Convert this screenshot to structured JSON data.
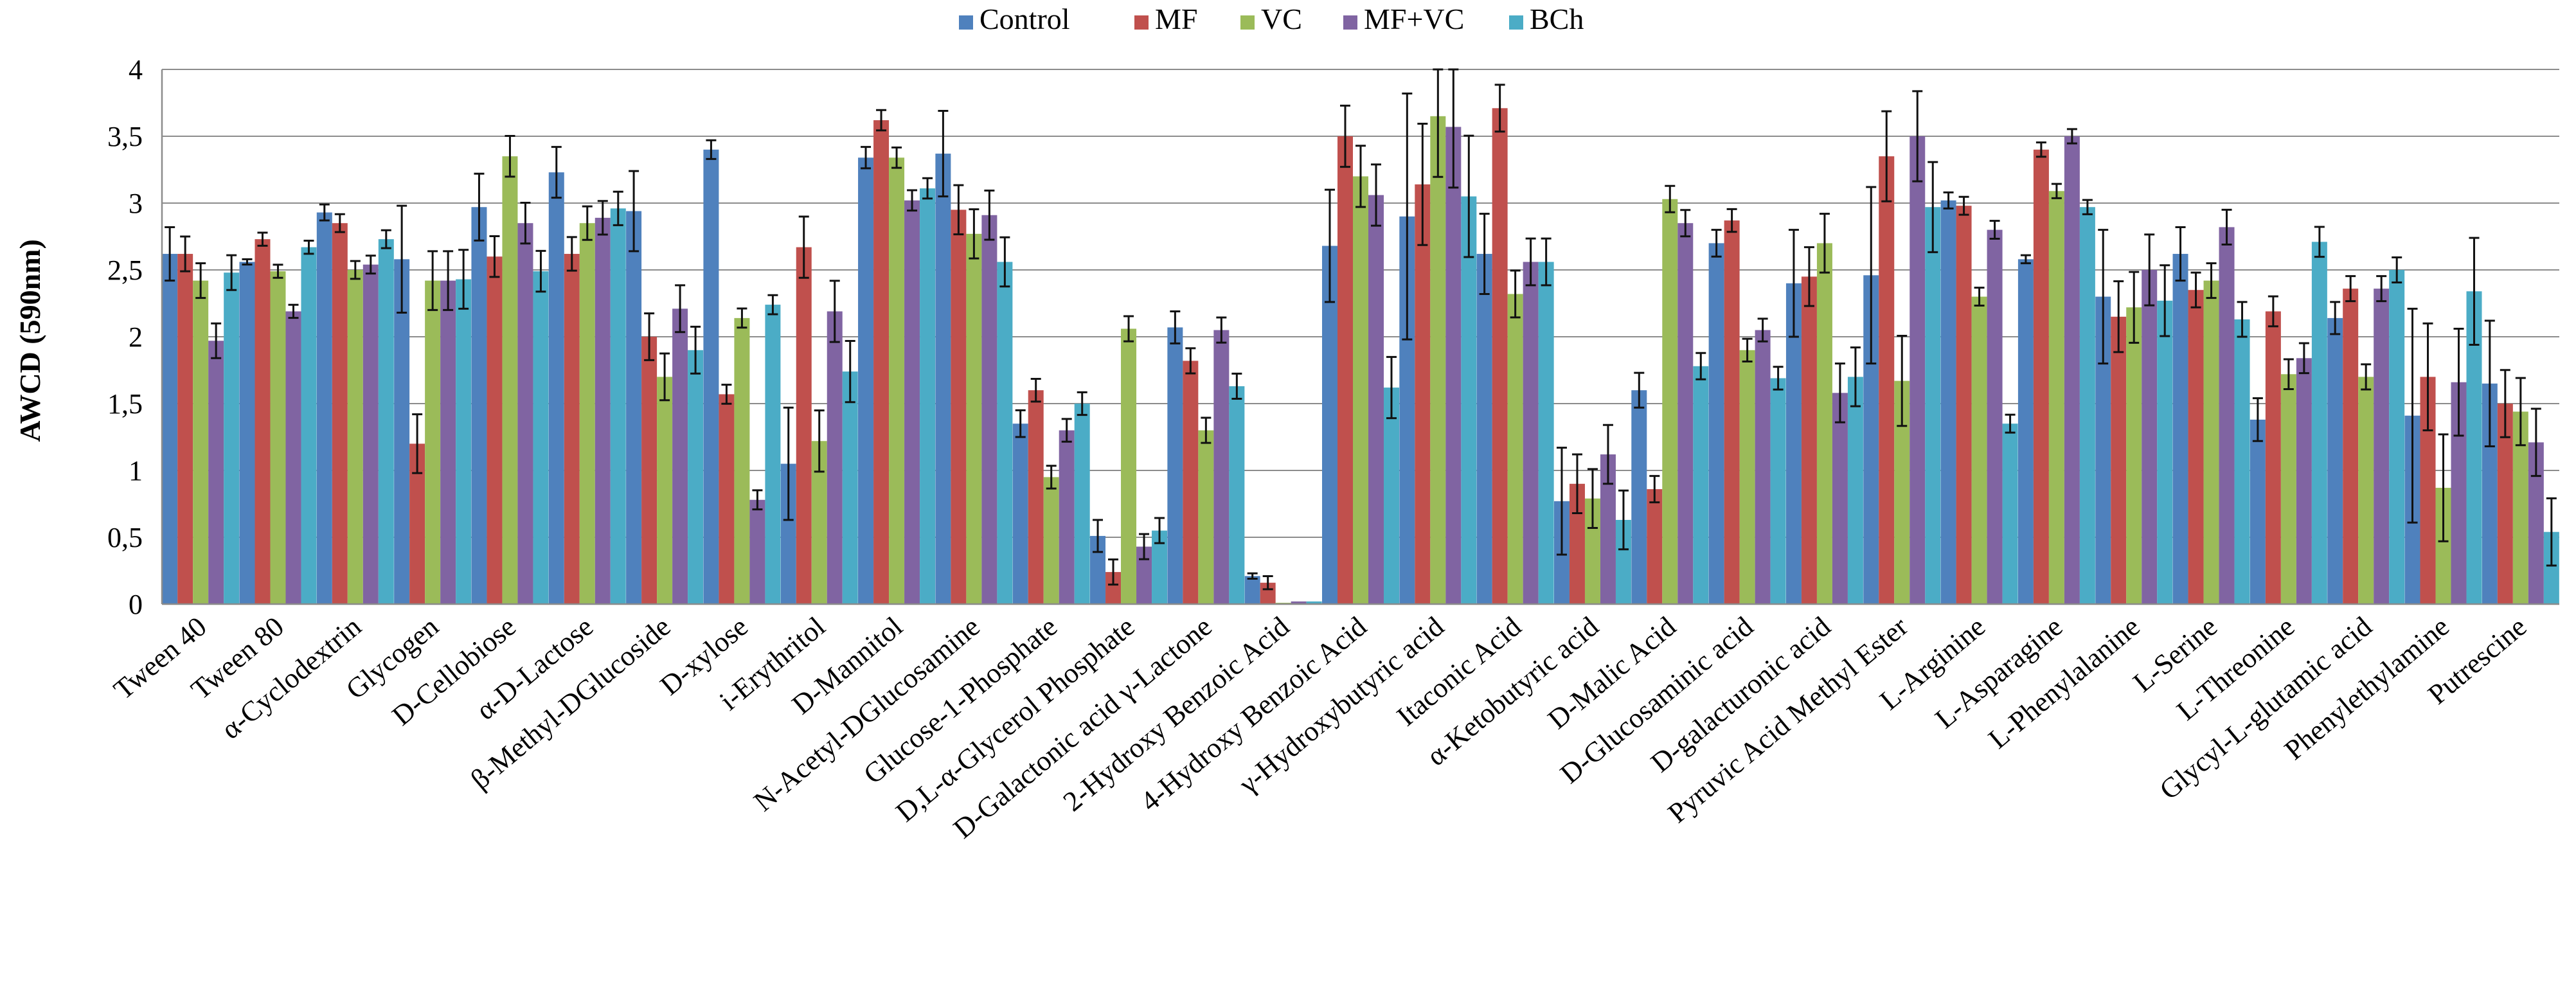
{
  "chart_data": {
    "type": "bar",
    "title": "",
    "xlabel": "",
    "ylabel": "AWCD (590nm)",
    "ylim": [
      0,
      4
    ],
    "yticks": [
      "0",
      "0,5",
      "1",
      "1,5",
      "2",
      "2,5",
      "3",
      "3,5",
      "4"
    ],
    "ytick_values": [
      0,
      0.5,
      1,
      1.5,
      2,
      2.5,
      3,
      3.5,
      4
    ],
    "grid": true,
    "legend_position": "top",
    "categories": [
      "Tween 40",
      "Tween 80",
      "α-Cyclodextrin",
      "Glycogen",
      "D-Cellobiose",
      "α-D-Lactose",
      "β-Methyl-DGlucoside",
      "D-xylose",
      "i-Erythritol",
      "D-Mannitol",
      "N-Acetyl-DGlucosamine",
      "Glucose-1-Phosphate",
      "D,L-α-Glycerol Phosphate",
      "D-Galactonic acid γ-Lactone",
      "2-Hydroxy Benzoic Acid",
      "4-Hydroxy Benzoic Acid",
      "γ-Hydroxybutyric acid",
      "Itaconic Acid",
      "α-Ketobutyric acid",
      "D-Malic Acid",
      "D-Glucosaminic acid",
      "D-galacturonic acid",
      "Pyruvic Acid Methyl Ester",
      "L-Arginine",
      "L-Asparagine",
      "L-Phenylalanine",
      "L-Serine",
      "L-Threonine",
      "Glycyl-L-glutamic acid",
      "Phenylethylamine",
      "Putrescine"
    ],
    "series": [
      {
        "name": "Control",
        "color": "#4f81bd",
        "values": [
          2.62,
          2.56,
          2.93,
          2.58,
          2.97,
          3.23,
          2.94,
          3.4,
          1.05,
          3.34,
          3.37,
          1.35,
          0.51,
          2.07,
          0.21,
          2.68,
          2.9,
          2.62,
          0.77,
          1.6,
          2.7,
          2.4,
          2.46,
          3.02,
          2.58,
          2.3,
          2.62,
          1.38,
          2.14,
          1.41,
          1.65
        ],
        "errors": [
          0.2,
          0.02,
          0.06,
          0.4,
          0.25,
          0.19,
          0.3,
          0.07,
          0.42,
          0.08,
          0.32,
          0.1,
          0.12,
          0.12,
          0.02,
          0.42,
          0.92,
          0.3,
          0.4,
          0.13,
          0.1,
          0.4,
          0.66,
          0.06,
          0.03,
          0.5,
          0.2,
          0.16,
          0.12,
          0.8,
          0.47
        ]
      },
      {
        "name": "MF",
        "color": "#c0504d",
        "values": [
          2.62,
          2.73,
          2.85,
          1.2,
          2.6,
          2.62,
          2.0,
          1.57,
          2.67,
          3.62,
          2.95,
          1.6,
          0.24,
          1.82,
          0.16,
          3.5,
          3.14,
          3.71,
          0.9,
          0.86,
          2.87,
          2.45,
          3.35,
          2.98,
          3.4,
          2.15,
          2.35,
          2.19,
          2.36,
          1.7,
          1.5
        ]
      },
      {
        "name": "VC",
        "color": "#9bbb59",
        "values": [
          2.42,
          2.49,
          2.5,
          2.42,
          3.35,
          2.85,
          1.7,
          2.14,
          1.22,
          3.34,
          2.77,
          0.95,
          2.06,
          1.3,
          0.01,
          3.2,
          3.65,
          2.32,
          0.79,
          3.03,
          1.9,
          2.7,
          1.67,
          2.3,
          3.09,
          2.22,
          2.42,
          1.72,
          1.7,
          0.87,
          1.44
        ]
      },
      {
        "name": "MF+VC",
        "color": "#8064a2",
        "values": [
          1.97,
          2.19,
          2.54,
          2.42,
          2.85,
          2.89,
          2.21,
          0.78,
          2.19,
          3.02,
          2.91,
          1.3,
          0.43,
          2.05,
          0.02,
          3.06,
          3.57,
          2.56,
          1.12,
          2.85,
          2.05,
          1.58,
          3.5,
          2.8,
          3.5,
          2.5,
          2.82,
          1.84,
          2.36,
          1.66,
          1.21
        ]
      },
      {
        "name": "BCh",
        "color": "#4bacc6",
        "values": [
          2.48,
          2.67,
          2.73,
          2.43,
          2.49,
          2.96,
          1.9,
          2.24,
          1.74,
          3.11,
          2.56,
          1.5,
          0.55,
          1.63,
          0.02,
          1.62,
          3.05,
          2.56,
          0.63,
          1.78,
          1.69,
          1.7,
          2.97,
          1.35,
          2.97,
          2.27,
          2.13,
          2.71,
          2.5,
          2.34,
          0.54
        ]
      }
    ]
  }
}
